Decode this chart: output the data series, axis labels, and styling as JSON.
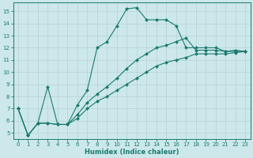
{
  "xlabel": "Humidex (Indice chaleur)",
  "bg_color": "#cce8ea",
  "line_color": "#1a7a6e",
  "grid_color": "#b8d4d6",
  "xlim": [
    -0.5,
    23.5
  ],
  "ylim": [
    4.5,
    15.7
  ],
  "xticks": [
    0,
    1,
    2,
    3,
    4,
    5,
    6,
    7,
    8,
    9,
    10,
    11,
    12,
    13,
    14,
    15,
    16,
    17,
    18,
    19,
    20,
    21,
    22,
    23
  ],
  "yticks": [
    5,
    6,
    7,
    8,
    9,
    10,
    11,
    12,
    13,
    14,
    15
  ],
  "curve_peak_x": [
    0,
    1,
    2,
    3,
    4,
    5,
    6,
    7,
    8,
    9,
    10,
    11,
    12,
    13,
    14,
    15,
    16,
    17,
    18,
    19,
    20,
    21,
    22,
    23
  ],
  "curve_peak_y": [
    7.0,
    4.8,
    5.8,
    8.8,
    5.7,
    5.7,
    7.3,
    8.5,
    12.0,
    12.5,
    13.8,
    15.2,
    15.3,
    14.3,
    14.3,
    14.3,
    13.8,
    12.0,
    12.0,
    12.0,
    12.0,
    11.7,
    11.8,
    11.7
  ],
  "curve_mid_x": [
    0,
    1,
    2,
    3,
    4,
    5,
    6,
    7,
    8,
    9,
    10,
    11,
    12,
    13,
    14,
    15,
    16,
    17,
    18,
    19,
    20,
    21,
    22,
    23
  ],
  "curve_mid_y": [
    7.0,
    4.8,
    5.8,
    5.8,
    5.7,
    5.7,
    6.5,
    7.5,
    8.2,
    8.8,
    9.5,
    10.3,
    11.0,
    11.5,
    12.0,
    12.2,
    12.5,
    12.8,
    11.8,
    11.8,
    11.8,
    11.7,
    11.7,
    11.7
  ],
  "curve_low_x": [
    0,
    1,
    2,
    3,
    4,
    5,
    6,
    7,
    8,
    9,
    10,
    11,
    12,
    13,
    14,
    15,
    16,
    17,
    18,
    19,
    20,
    21,
    22,
    23
  ],
  "curve_low_y": [
    7.0,
    4.8,
    5.8,
    5.8,
    5.7,
    5.7,
    6.2,
    7.0,
    7.6,
    8.0,
    8.5,
    9.0,
    9.5,
    10.0,
    10.5,
    10.8,
    11.0,
    11.2,
    11.5,
    11.5,
    11.5,
    11.5,
    11.6,
    11.7
  ]
}
